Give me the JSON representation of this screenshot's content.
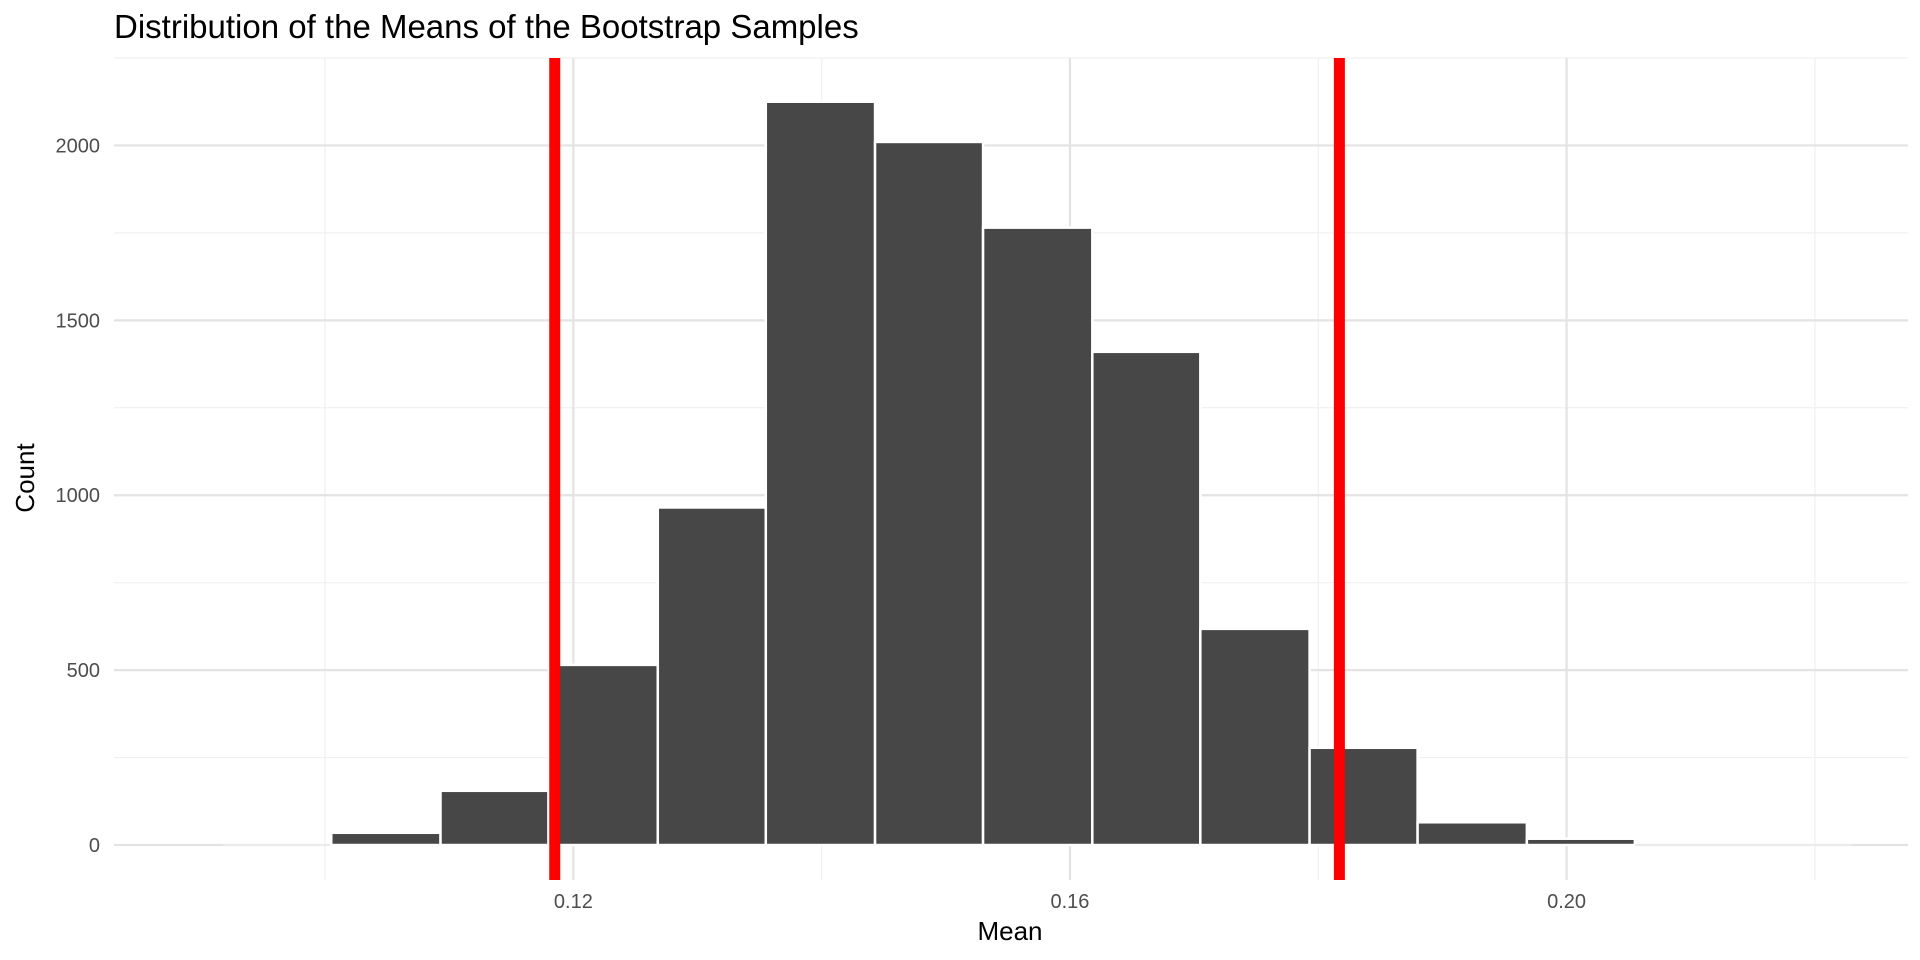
{
  "chart_data": {
    "type": "bar",
    "title": "Distribution of the Means of the Bootstrap Samples",
    "xlabel": "Mean",
    "ylabel": "Count",
    "xlim": [
      0.083,
      0.2275
    ],
    "ylim": [
      -100,
      2250
    ],
    "x_ticks": [
      0.12,
      0.16,
      0.2
    ],
    "x_tick_labels": [
      "0.12",
      "0.16",
      "0.20"
    ],
    "y_ticks": [
      0,
      500,
      1000,
      1500,
      2000
    ],
    "y_tick_labels": [
      "0",
      "500",
      "1000",
      "1500",
      "2000"
    ],
    "bin_width": 0.00875,
    "bins": [
      {
        "x0": 0.0918,
        "x1": 0.1005,
        "count": 0
      },
      {
        "x0": 0.1005,
        "x1": 0.1093,
        "count": 35
      },
      {
        "x0": 0.1093,
        "x1": 0.118,
        "count": 155
      },
      {
        "x0": 0.118,
        "x1": 0.1268,
        "count": 515
      },
      {
        "x0": 0.1268,
        "x1": 0.1355,
        "count": 965
      },
      {
        "x0": 0.1355,
        "x1": 0.1443,
        "count": 2125
      },
      {
        "x0": 0.1443,
        "x1": 0.153,
        "count": 2010
      },
      {
        "x0": 0.153,
        "x1": 0.1618,
        "count": 1765
      },
      {
        "x0": 0.1618,
        "x1": 0.1705,
        "count": 1410
      },
      {
        "x0": 0.1705,
        "x1": 0.1793,
        "count": 618
      },
      {
        "x0": 0.1793,
        "x1": 0.188,
        "count": 278
      },
      {
        "x0": 0.188,
        "x1": 0.1968,
        "count": 65
      },
      {
        "x0": 0.1968,
        "x1": 0.2055,
        "count": 18
      },
      {
        "x0": 0.2055,
        "x1": 0.2143,
        "count": 0
      },
      {
        "x0": 0.2143,
        "x1": 0.223,
        "count": 0
      }
    ],
    "vlines": [
      0.1185,
      0.1817
    ],
    "grid": true,
    "colors": {
      "bar_fill": "#474747",
      "bar_stroke": "#ffffff",
      "vline": "#ff0000",
      "grid_major": "#e3e3e3",
      "grid_minor": "#f0f0f0",
      "background": "#ffffff"
    }
  }
}
